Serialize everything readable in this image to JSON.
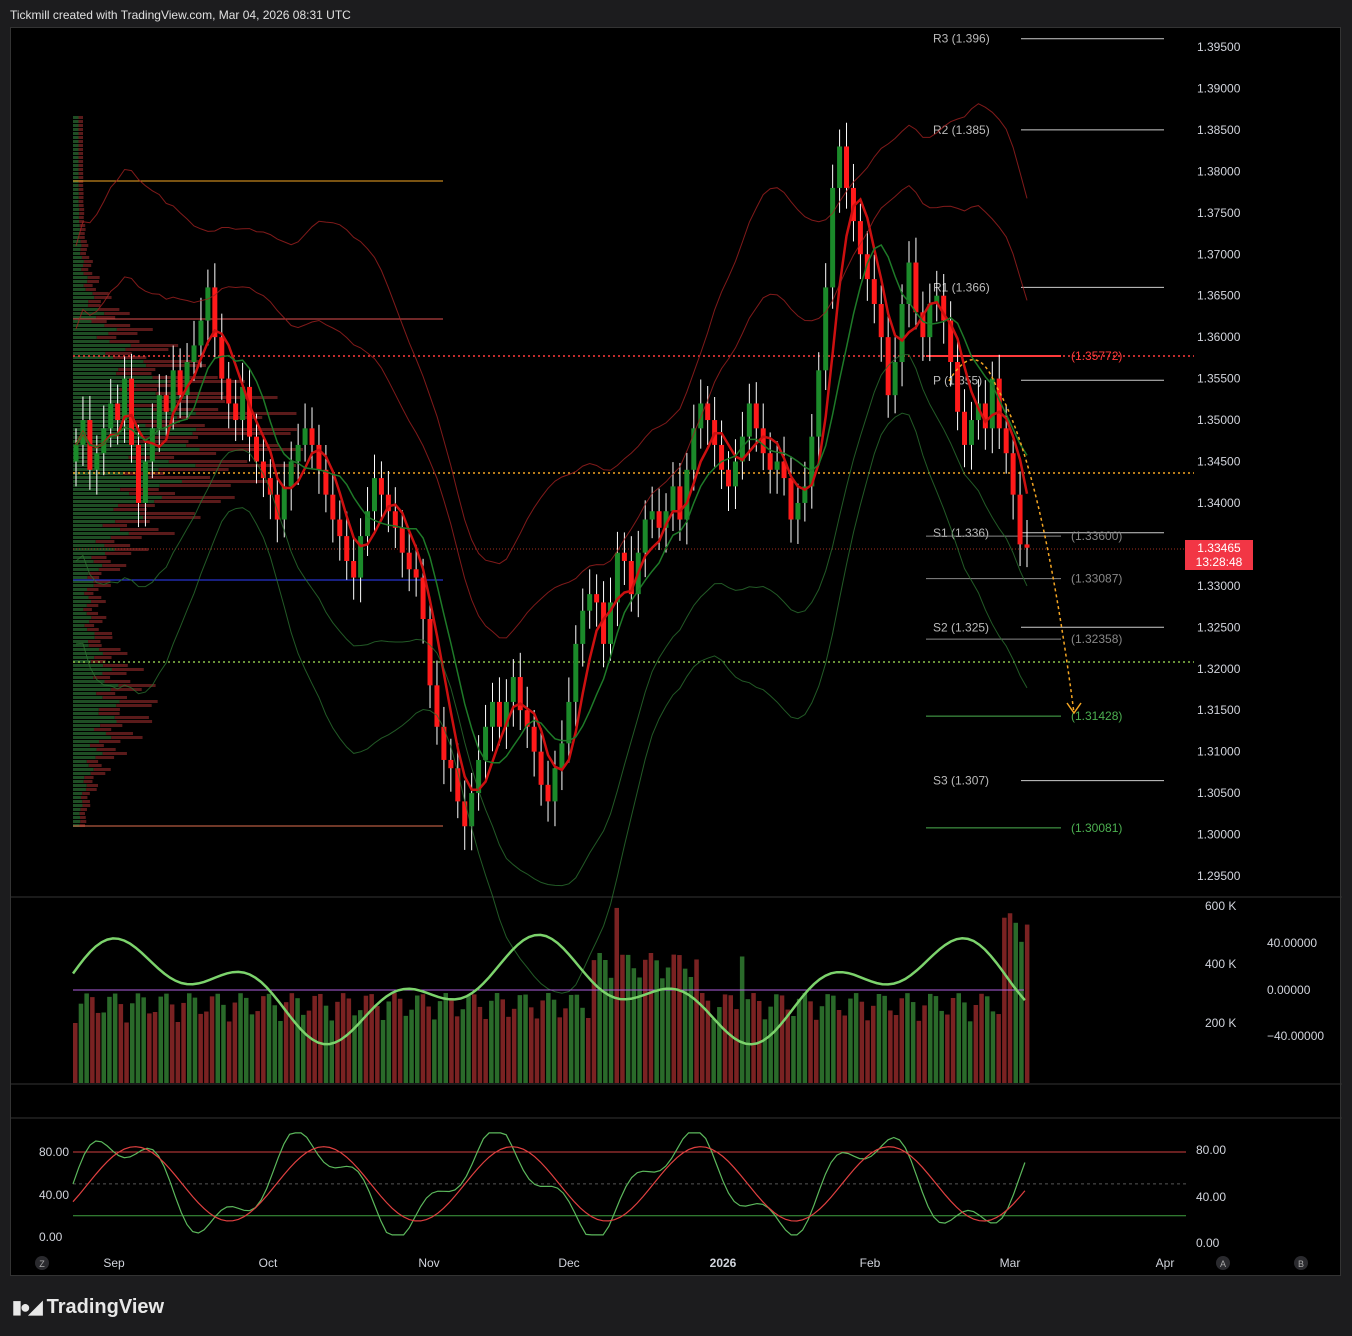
{
  "header": {
    "text": "Tickmill created with TradingView.com, Mar 04, 2026 08:31 UTC"
  },
  "footer": {
    "brand": "TradingView",
    "logo_icon": "tradingview-logo-icon"
  },
  "colors": {
    "up": "#2e7d32",
    "down": "#e0201b",
    "bg": "#000000",
    "orange": "#f5a623",
    "red_line": "#ff3b3b",
    "green_level": "#4caf50"
  },
  "chart_data": [
    {
      "type": "candlestick",
      "title": "",
      "x_ticks": [
        "Sep",
        "Oct",
        "Nov",
        "Dec",
        "2026",
        "Feb",
        "Mar",
        "Apr"
      ],
      "y_ticks": [
        "1.39500",
        "1.39000",
        "1.38500",
        "1.38000",
        "1.37500",
        "1.37000",
        "1.36500",
        "1.36000",
        "1.35500",
        "1.35000",
        "1.34500",
        "1.34000",
        "1.33500",
        "1.33000",
        "1.32500",
        "1.32000",
        "1.31500",
        "1.31000",
        "1.30500",
        "1.30000",
        "1.29500"
      ],
      "ylim": [
        1.292,
        1.398
      ],
      "current_price": {
        "value": "1.33465",
        "countdown": "13:28:48"
      },
      "pivots": [
        {
          "label": "R3 (1.396)",
          "value": 1.396
        },
        {
          "label": "R2 (1.385)",
          "value": 1.385
        },
        {
          "label": "R1 (1.366)",
          "value": 1.366
        },
        {
          "label": "P (1.355)",
          "value": 1.3548
        },
        {
          "label": "S1 (1.336)",
          "value": 1.3364
        },
        {
          "label": "S2 (1.325)",
          "value": 1.325
        },
        {
          "label": "S3 (1.307)",
          "value": 1.3065
        }
      ],
      "levels": [
        {
          "label": "(1.35772)",
          "value": 1.35772,
          "color": "#ff3b3b"
        },
        {
          "label": "(1.33600)",
          "value": 1.336,
          "color": "#888888"
        },
        {
          "label": "(1.33087)",
          "value": 1.33087,
          "color": "#888888"
        },
        {
          "label": "(1.32358)",
          "value": 1.32358,
          "color": "#888888"
        },
        {
          "label": "(1.31428)",
          "value": 1.31428,
          "color": "#4caf50"
        },
        {
          "label": "(1.30081)",
          "value": 1.30081,
          "color": "#4caf50"
        }
      ],
      "close_series": [
        1.347,
        1.35,
        1.344,
        1.346,
        1.349,
        1.352,
        1.35,
        1.355,
        1.347,
        1.34,
        1.345,
        1.349,
        1.353,
        1.351,
        1.356,
        1.353,
        1.357,
        1.359,
        1.362,
        1.366,
        1.36,
        1.355,
        1.352,
        1.35,
        1.354,
        1.348,
        1.345,
        1.343,
        1.341,
        1.338,
        1.342,
        1.345,
        1.347,
        1.349,
        1.347,
        1.344,
        1.341,
        1.338,
        1.336,
        1.333,
        1.331,
        1.336,
        1.339,
        1.343,
        1.341,
        1.339,
        1.337,
        1.334,
        1.332,
        1.331,
        1.326,
        1.318,
        1.313,
        1.309,
        1.308,
        1.304,
        1.301,
        1.305,
        1.309,
        1.313,
        1.316,
        1.313,
        1.316,
        1.319,
        1.315,
        1.313,
        1.31,
        1.306,
        1.304,
        1.308,
        1.311,
        1.316,
        1.323,
        1.327,
        1.329,
        1.328,
        1.323,
        1.328,
        1.334,
        1.333,
        1.329,
        1.334,
        1.338,
        1.339,
        1.337,
        1.339,
        1.342,
        1.338,
        1.344,
        1.349,
        1.352,
        1.35,
        1.347,
        1.344,
        1.342,
        1.345,
        1.348,
        1.352,
        1.349,
        1.346,
        1.344,
        1.345,
        1.343,
        1.338,
        1.34,
        1.342,
        1.348,
        1.356,
        1.366,
        1.378,
        1.383,
        1.378,
        1.374,
        1.37,
        1.367,
        1.364,
        1.36,
        1.353,
        1.357,
        1.364,
        1.369,
        1.363,
        1.36,
        1.364,
        1.365,
        1.362,
        1.357,
        1.351,
        1.347,
        1.35,
        1.352,
        1.349,
        1.355,
        1.349,
        1.346,
        1.341,
        1.335,
        1.3346
      ],
      "volume_profile_note": "horizontal volume histogram on left",
      "projection": "orange dotted arc from peak to target 1.31428"
    },
    {
      "type": "bar",
      "name": "volume with oscillator",
      "y_ticks_left": [
        "600 K",
        "400 K",
        "200 K"
      ],
      "y_ticks_right": [
        "40.00000",
        "0.00000",
        "−40.00000"
      ]
    },
    {
      "type": "line",
      "name": "stochastic",
      "y_ticks_left": [
        "80.00",
        "40.00",
        "0.00"
      ],
      "y_ticks_right": [
        "80.00",
        "40.00",
        "0.00"
      ]
    }
  ],
  "bottom_buttons": {
    "left": "Z",
    "a": "A",
    "b": "B"
  }
}
